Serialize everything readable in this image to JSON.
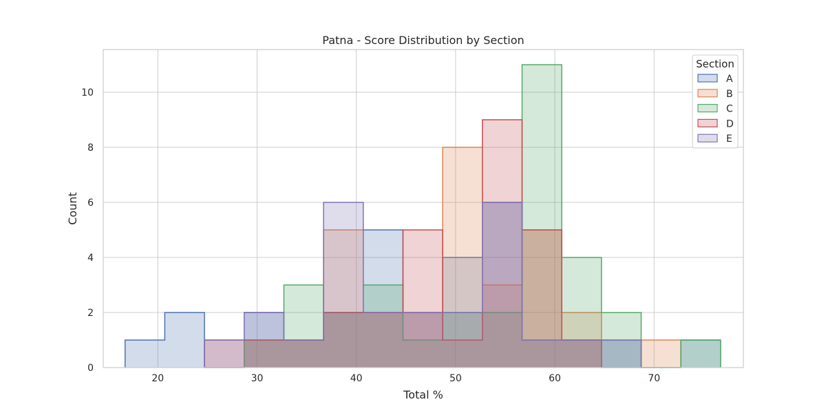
{
  "chart_data": {
    "type": "histogram",
    "title": "Patna - Score Distribution by Section",
    "xlabel": "Total %",
    "ylabel": "Count",
    "xlim": [
      14.5,
      79
    ],
    "ylim": [
      0,
      11.55
    ],
    "xticks": [
      20,
      30,
      40,
      50,
      60,
      70
    ],
    "yticks": [
      0,
      2,
      4,
      6,
      8,
      10
    ],
    "grid": true,
    "legend": {
      "title": "Section",
      "position": "top-right"
    },
    "bin_edges": [
      16.7,
      20.7,
      24.7,
      28.7,
      32.7,
      36.7,
      40.7,
      44.7,
      48.7,
      52.7,
      56.7,
      60.7,
      64.7,
      68.7,
      72.7,
      76.7
    ],
    "series": [
      {
        "name": "A",
        "color": "#4c72b0",
        "values": [
          1,
          2,
          0,
          2,
          1,
          2,
          5,
          2,
          4,
          6,
          1,
          1,
          1,
          0,
          1
        ]
      },
      {
        "name": "B",
        "color": "#dd8452",
        "values": [
          0,
          0,
          0,
          1,
          1,
          5,
          2,
          2,
          8,
          3,
          5,
          2,
          0,
          1,
          0
        ]
      },
      {
        "name": "C",
        "color": "#55a868",
        "values": [
          0,
          0,
          0,
          1,
          3,
          2,
          3,
          1,
          2,
          2,
          11,
          4,
          2,
          0,
          1
        ]
      },
      {
        "name": "D",
        "color": "#c44e52",
        "values": [
          0,
          0,
          1,
          1,
          1,
          2,
          2,
          5,
          1,
          9,
          5,
          1,
          0,
          0,
          0
        ]
      },
      {
        "name": "E",
        "color": "#8172b3",
        "values": [
          0,
          0,
          1,
          2,
          1,
          6,
          2,
          2,
          2,
          6,
          1,
          1,
          1,
          0,
          0
        ]
      }
    ]
  }
}
